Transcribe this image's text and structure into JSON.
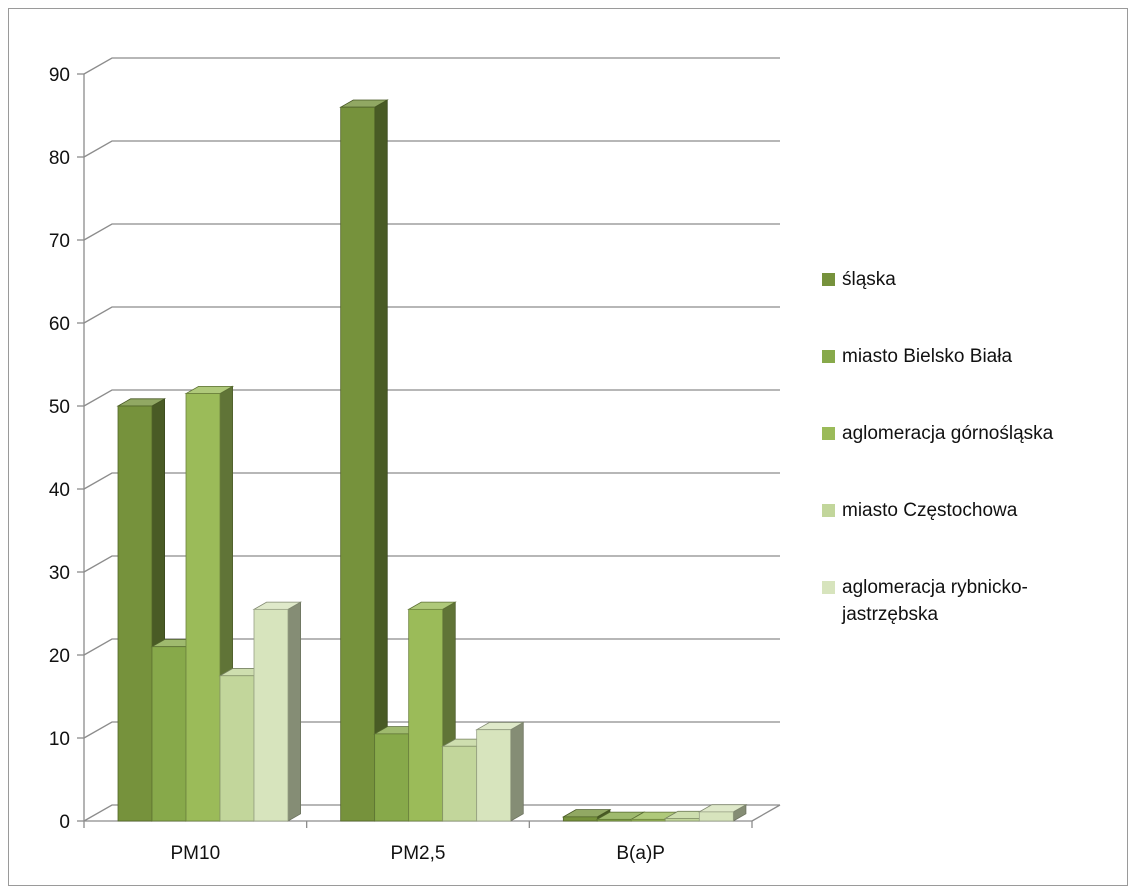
{
  "chart_data": {
    "type": "bar",
    "categories": [
      "PM10",
      "PM2,5",
      "B(a)P"
    ],
    "series": [
      {
        "name": "śląska",
        "values": [
          50,
          86,
          0.5
        ],
        "color": "#76923C"
      },
      {
        "name": "miasto Bielsko Biała",
        "values": [
          21,
          10.5,
          0.2
        ],
        "color": "#87A94A"
      },
      {
        "name": "aglomeracja górnośląska",
        "values": [
          51.5,
          25.5,
          0.2
        ],
        "color": "#9BBB59"
      },
      {
        "name": "miasto Częstochowa",
        "values": [
          17.5,
          9,
          0.3
        ],
        "color": "#C2D69B"
      },
      {
        "name": "aglomeracja rybnicko-jastrzębska",
        "values": [
          25.5,
          11,
          1.1
        ],
        "color": "#D7E4BD"
      }
    ],
    "ylim": [
      0,
      90
    ],
    "yticks": [
      "0",
      "10",
      "20",
      "30",
      "40",
      "50",
      "60",
      "70",
      "80",
      "90"
    ],
    "grid": true,
    "legend_position": "right",
    "chart_style": "3d-clustered-column"
  }
}
